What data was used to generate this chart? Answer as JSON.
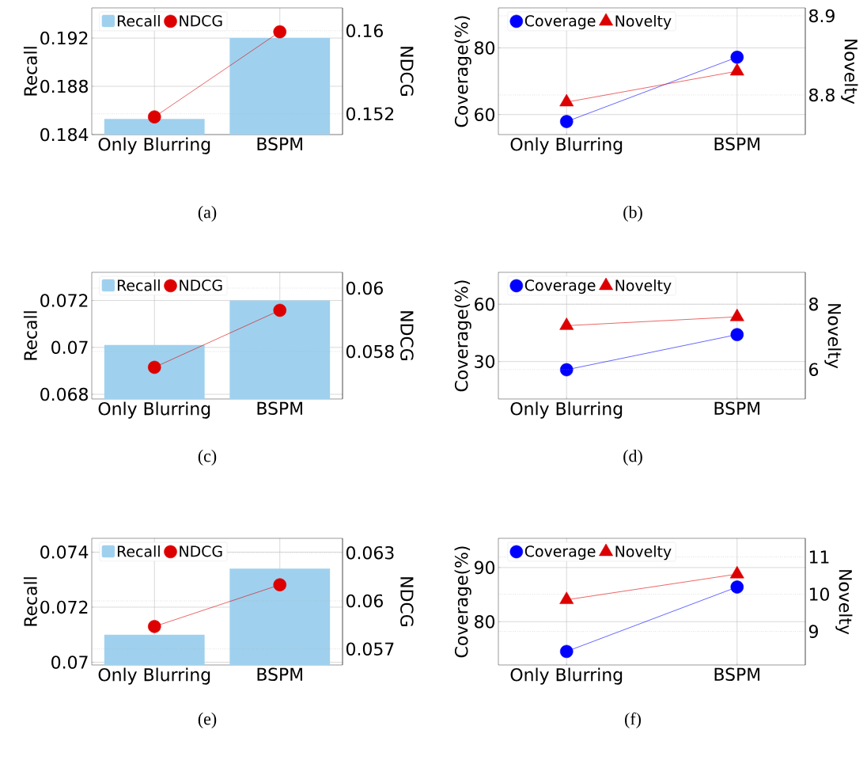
{
  "chart_data": [
    {
      "type": "bar",
      "categories": [
        "Only Blurring",
        "BSPM"
      ],
      "ylabel": "Recall",
      "y2label": "NDCG",
      "ylim": [
        0.184,
        0.1945
      ],
      "yticks": [
        0.184,
        0.188,
        0.192
      ],
      "y2lim": [
        0.15,
        0.1622
      ],
      "y2ticks": [
        0.152,
        0.16
      ],
      "grid": true,
      "legend": "top left",
      "annotations": [
        "(a)"
      ],
      "series": [
        {
          "name": "Recall",
          "color": "#9fd1ee",
          "values": [
            0.1853,
            0.192
          ]
        },
        {
          "name": "NDCG",
          "type": "line",
          "axis": "y2",
          "marker": "circle",
          "color": "#dd0000",
          "values": [
            0.1517,
            0.1599
          ]
        }
      ]
    },
    {
      "type": "line",
      "categories": [
        "Only Blurring",
        "BSPM"
      ],
      "ylabel": "Coverage(%)",
      "y2label": "Novelty",
      "ylim": [
        54,
        92
      ],
      "yticks": [
        60,
        80
      ],
      "y2lim": [
        8.75,
        8.91
      ],
      "y2ticks": [
        8.8,
        8.9
      ],
      "grid": true,
      "legend": "top left",
      "annotations": [
        "(b)"
      ],
      "series": [
        {
          "name": "Coverage",
          "marker": "circle",
          "color": "#0000ff",
          "values": [
            57.9,
            77.2
          ]
        },
        {
          "name": "Novelty",
          "axis": "y2",
          "marker": "triangle",
          "color": "#dd0000",
          "values": [
            8.791,
            8.83
          ]
        }
      ]
    },
    {
      "type": "bar",
      "categories": [
        "Only Blurring",
        "BSPM"
      ],
      "ylabel": "Recall",
      "y2label": "NDCG",
      "ylim": [
        0.0678,
        0.0732
      ],
      "yticks": [
        0.068,
        0.07,
        0.072
      ],
      "y2lim": [
        0.0565,
        0.0605
      ],
      "y2ticks": [
        0.058,
        0.06
      ],
      "grid": true,
      "legend": "top left",
      "annotations": [
        "(c)"
      ],
      "series": [
        {
          "name": "Recall",
          "color": "#9fd1ee",
          "values": [
            0.0701,
            0.072
          ]
        },
        {
          "name": "NDCG",
          "type": "line",
          "axis": "y2",
          "marker": "circle",
          "color": "#dd0000",
          "values": [
            0.0575,
            0.0593
          ]
        }
      ]
    },
    {
      "type": "line",
      "categories": [
        "Only Blurring",
        "BSPM"
      ],
      "ylabel": "Coverage(%)",
      "y2label": "Novelty",
      "ylim": [
        10.4,
        76.7
      ],
      "yticks": [
        30,
        60
      ],
      "y2lim": [
        5.1,
        8.97
      ],
      "y2ticks": [
        6,
        8
      ],
      "grid": true,
      "legend": "top left",
      "annotations": [
        "(d)"
      ],
      "series": [
        {
          "name": "Coverage",
          "marker": "circle",
          "color": "#0000ff",
          "values": [
            25.7,
            44.1
          ]
        },
        {
          "name": "Novelty",
          "axis": "y2",
          "marker": "triangle",
          "color": "#dd0000",
          "values": [
            7.34,
            7.61
          ]
        }
      ]
    },
    {
      "type": "bar",
      "categories": [
        "Only Blurring",
        "BSPM"
      ],
      "ylabel": "Recall",
      "y2label": "NDCG",
      "ylim": [
        0.0699,
        0.0745
      ],
      "yticks": [
        0.07,
        0.072,
        0.074
      ],
      "y2lim": [
        0.056,
        0.0639
      ],
      "y2ticks": [
        0.057,
        0.06,
        0.063
      ],
      "grid": true,
      "legend": "top left",
      "annotations": [
        "(e)"
      ],
      "series": [
        {
          "name": "Recall",
          "color": "#9fd1ee",
          "values": [
            0.071,
            0.0734
          ]
        },
        {
          "name": "NDCG",
          "type": "line",
          "axis": "y2",
          "marker": "circle",
          "color": "#dd0000",
          "values": [
            0.0584,
            0.061
          ]
        }
      ]
    },
    {
      "type": "line",
      "categories": [
        "Only Blurring",
        "BSPM"
      ],
      "ylabel": "Coverage(%)",
      "y2label": "Novelty",
      "ylim": [
        72,
        95.4
      ],
      "yticks": [
        80,
        90
      ],
      "y2lim": [
        8.1,
        11.5
      ],
      "y2ticks": [
        9,
        10,
        11
      ],
      "grid": true,
      "legend": "top left",
      "annotations": [
        "(f)"
      ],
      "series": [
        {
          "name": "Coverage",
          "marker": "circle",
          "color": "#0000ff",
          "values": [
            74.5,
            86.4
          ]
        },
        {
          "name": "Novelty",
          "axis": "y2",
          "marker": "triangle",
          "color": "#dd0000",
          "values": [
            9.85,
            10.54
          ]
        }
      ]
    }
  ]
}
